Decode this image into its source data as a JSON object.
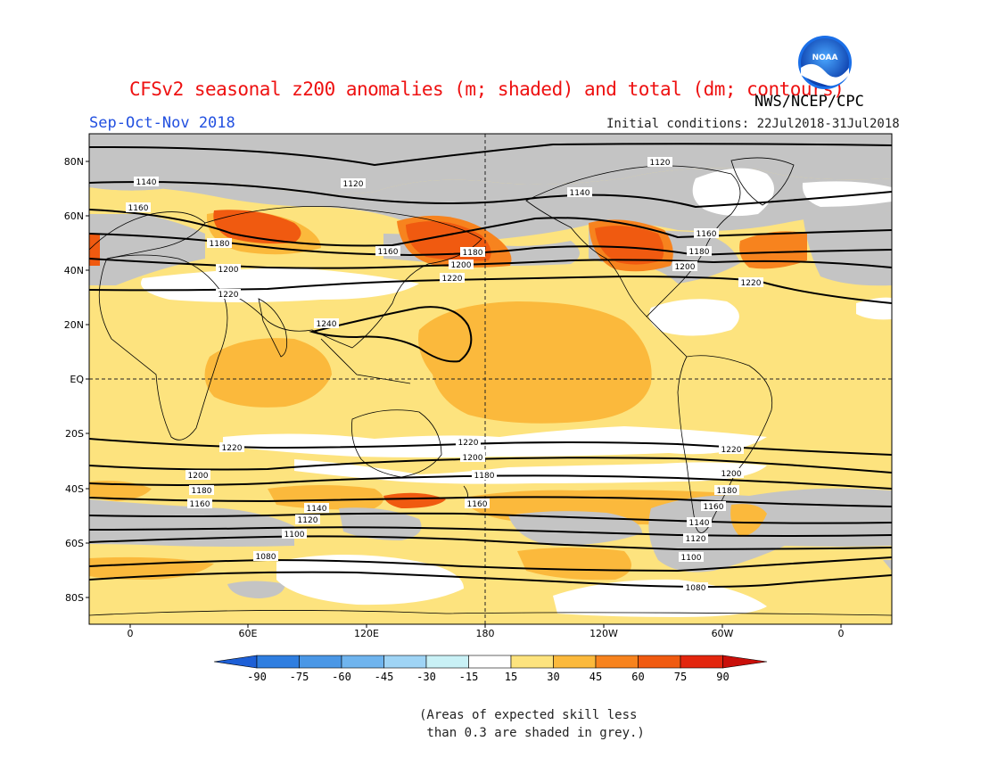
{
  "header": {
    "title": "CFSv2 seasonal z200 anomalies (m; shaded) and total (dm; contours)",
    "agency": "NWS/NCEP/CPC",
    "season": "Sep-Oct-Nov 2018",
    "initial_conditions": "Initial conditions: 22Jul2018-31Jul2018",
    "logo_text": "NOAA"
  },
  "map": {
    "lat_labels": [
      "80N",
      "60N",
      "40N",
      "20N",
      "EQ",
      "20S",
      "40S",
      "60S",
      "80S"
    ],
    "lon_labels": [
      "0",
      "60E",
      "120E",
      "180",
      "120W",
      "60W",
      "0"
    ],
    "contour_labels": [
      {
        "text": "1120"
      },
      {
        "text": "1120"
      },
      {
        "text": "1140"
      },
      {
        "text": "1140"
      },
      {
        "text": "1160"
      },
      {
        "text": "1160"
      },
      {
        "text": "1160"
      },
      {
        "text": "1180"
      },
      {
        "text": "1180"
      },
      {
        "text": "1180"
      },
      {
        "text": "1200"
      },
      {
        "text": "1200"
      },
      {
        "text": "1200"
      },
      {
        "text": "1220"
      },
      {
        "text": "1220"
      },
      {
        "text": "1220"
      },
      {
        "text": "1240"
      },
      {
        "text": "1220"
      },
      {
        "text": "1220"
      },
      {
        "text": "1220"
      },
      {
        "text": "1200"
      },
      {
        "text": "1200"
      },
      {
        "text": "1200"
      },
      {
        "text": "1180"
      },
      {
        "text": "1180"
      },
      {
        "text": "1180"
      },
      {
        "text": "1160"
      },
      {
        "text": "1160"
      },
      {
        "text": "1160"
      },
      {
        "text": "1140"
      },
      {
        "text": "1140"
      },
      {
        "text": "1120"
      },
      {
        "text": "1120"
      },
      {
        "text": "1100"
      },
      {
        "text": "1100"
      },
      {
        "text": "1080"
      },
      {
        "text": "1080"
      }
    ],
    "colors": {
      "shade_15_30": "#fde37e",
      "shade_30_45": "#fbb93c",
      "shade_45_60": "#f7831e",
      "shade_60_75": "#f05a10",
      "low_skill_grey": "#c4c4c4",
      "ocean_neutral": "#ffffff"
    }
  },
  "colorbar": {
    "ticks": [
      "-90",
      "-75",
      "-60",
      "-45",
      "-30",
      "-15",
      "15",
      "30",
      "45",
      "60",
      "75",
      "90"
    ],
    "colors": [
      "#1d5fd6",
      "#2f7ee0",
      "#4a97e6",
      "#6fb4ee",
      "#9fd4f5",
      "#c9f1f6",
      "#ffffff",
      "#fde37e",
      "#fbb93c",
      "#f7831e",
      "#f05a10",
      "#e3260e",
      "#c90f0a"
    ]
  },
  "footnote": {
    "line1": "(Areas of expected skill less",
    "line2": " than 0.3 are shaded in grey.)"
  }
}
